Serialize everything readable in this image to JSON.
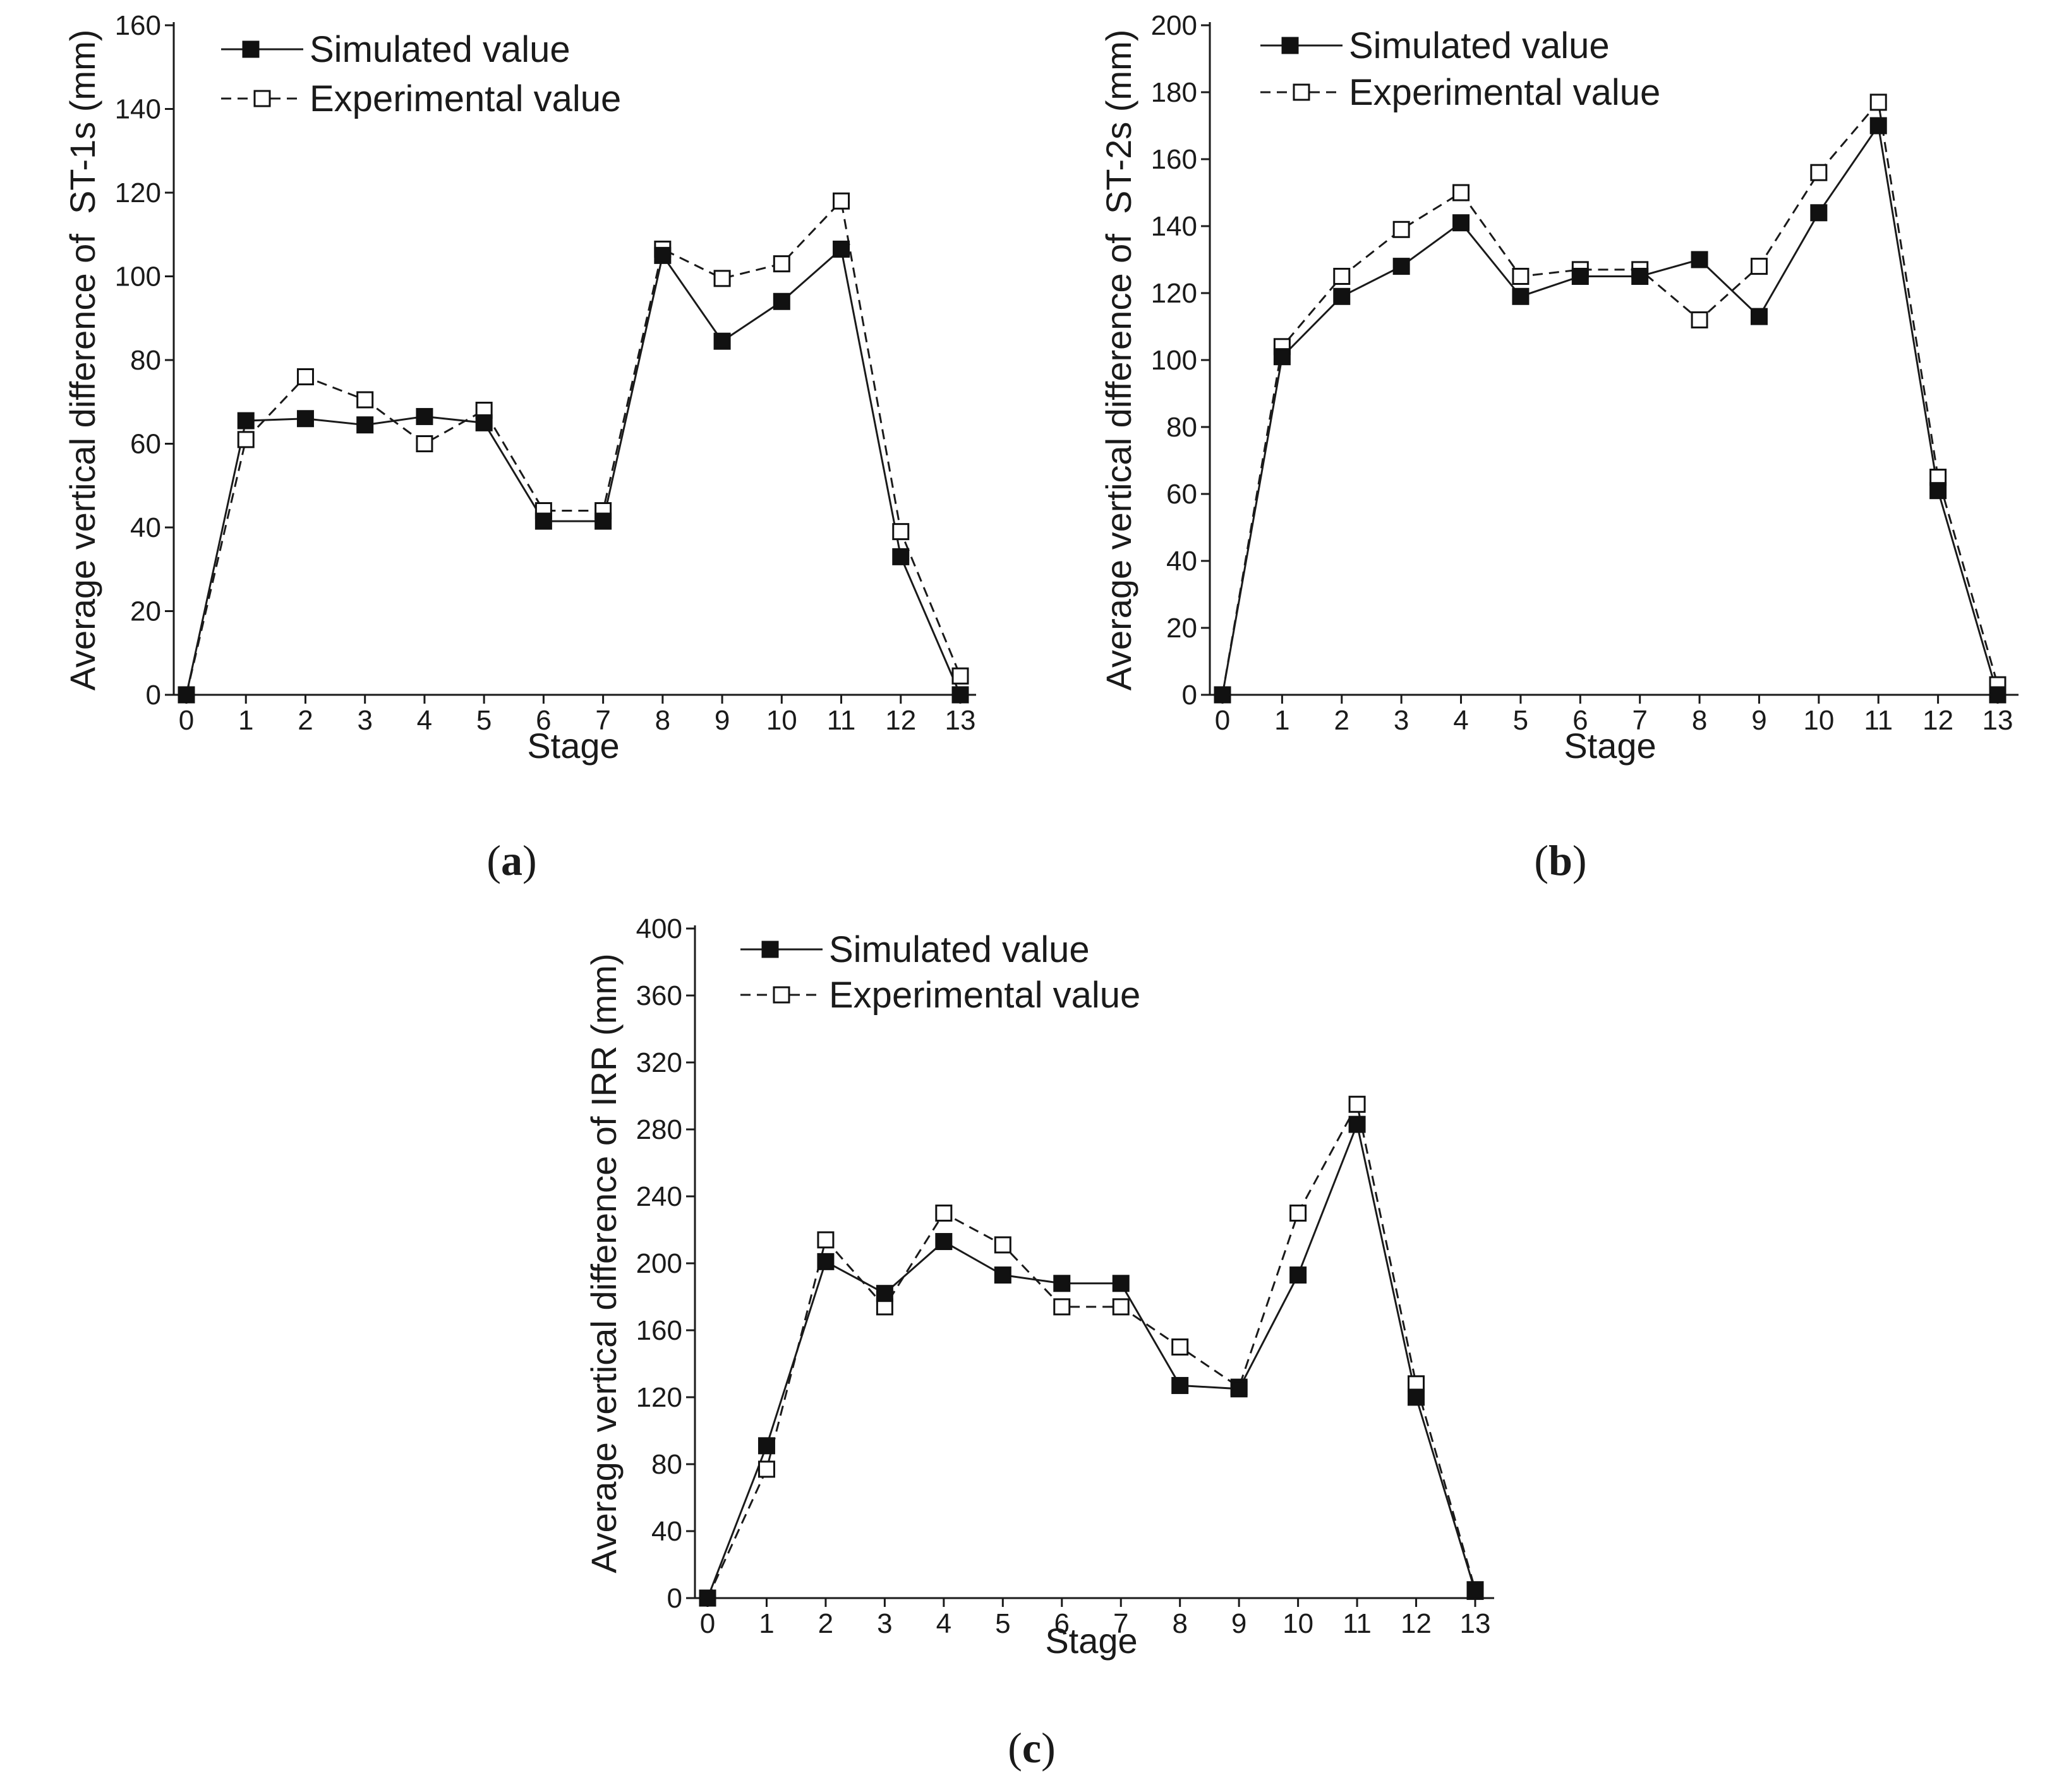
{
  "figure": {
    "legend": {
      "simulated": "Simulated value",
      "experimental": "Experimental value"
    },
    "x_label": "Stage"
  },
  "chart_data": [
    {
      "type": "line",
      "panel": "a",
      "caption_letter": "a",
      "title": "",
      "xlabel": "Stage",
      "ylabel": "Average vertical difference of  ST-1s (mm)",
      "x": [
        0,
        1,
        2,
        3,
        4,
        5,
        6,
        7,
        8,
        9,
        10,
        11,
        12,
        13
      ],
      "xlim": [
        0,
        13
      ],
      "ylim": [
        0,
        160
      ],
      "yticks": [
        0,
        20,
        40,
        60,
        80,
        100,
        120,
        140,
        160
      ],
      "legend_position": "top-left",
      "series": [
        {
          "name": "Simulated value",
          "style": "solid",
          "marker": "filled-square",
          "values": [
            0,
            65.5,
            66,
            64.5,
            66.5,
            65,
            41.5,
            41.5,
            105,
            84.5,
            94,
            106.5,
            33,
            0
          ]
        },
        {
          "name": "Experimental value",
          "style": "dashed",
          "marker": "open-square",
          "values": [
            0,
            61,
            76,
            70.5,
            60,
            68,
            44,
            44,
            106.5,
            99.5,
            103,
            118,
            39,
            4.5
          ]
        }
      ]
    },
    {
      "type": "line",
      "panel": "b",
      "caption_letter": "b",
      "title": "",
      "xlabel": "Stage",
      "ylabel": "Average vertical difference of  ST-2s (mm)",
      "x": [
        0,
        1,
        2,
        3,
        4,
        5,
        6,
        7,
        8,
        9,
        10,
        11,
        12,
        13
      ],
      "xlim": [
        0,
        13
      ],
      "ylim": [
        0,
        200
      ],
      "yticks": [
        0,
        20,
        40,
        60,
        80,
        100,
        120,
        140,
        160,
        180,
        200
      ],
      "legend_position": "top-left",
      "series": [
        {
          "name": "Simulated value",
          "style": "solid",
          "marker": "filled-square",
          "values": [
            0,
            101,
            119,
            128,
            141,
            119,
            125,
            125,
            130,
            113,
            144,
            170,
            61,
            0
          ]
        },
        {
          "name": "Experimental value",
          "style": "dashed",
          "marker": "open-square",
          "values": [
            0,
            104,
            125,
            139,
            150,
            125,
            127,
            127,
            112,
            128,
            156,
            177,
            65,
            3
          ]
        }
      ]
    },
    {
      "type": "line",
      "panel": "c",
      "caption_letter": "c",
      "title": "",
      "xlabel": "Stage",
      "ylabel": "Average vertical difference of IRR (mm)",
      "x": [
        0,
        1,
        2,
        3,
        4,
        5,
        6,
        7,
        8,
        9,
        10,
        11,
        12,
        13
      ],
      "xlim": [
        0,
        13
      ],
      "ylim": [
        0,
        400
      ],
      "yticks": [
        0,
        40,
        80,
        120,
        160,
        200,
        240,
        280,
        320,
        360,
        400
      ],
      "legend_position": "top-left",
      "series": [
        {
          "name": "Simulated value",
          "style": "solid",
          "marker": "filled-square",
          "values": [
            0,
            91,
            201,
            182,
            213,
            193,
            188,
            188,
            127,
            125,
            193,
            283,
            120,
            4
          ]
        },
        {
          "name": "Experimental value",
          "style": "dashed",
          "marker": "open-square",
          "values": [
            0,
            77,
            214,
            174,
            230,
            211,
            174,
            174,
            150,
            126,
            230,
            295,
            128,
            5
          ]
        }
      ]
    }
  ]
}
